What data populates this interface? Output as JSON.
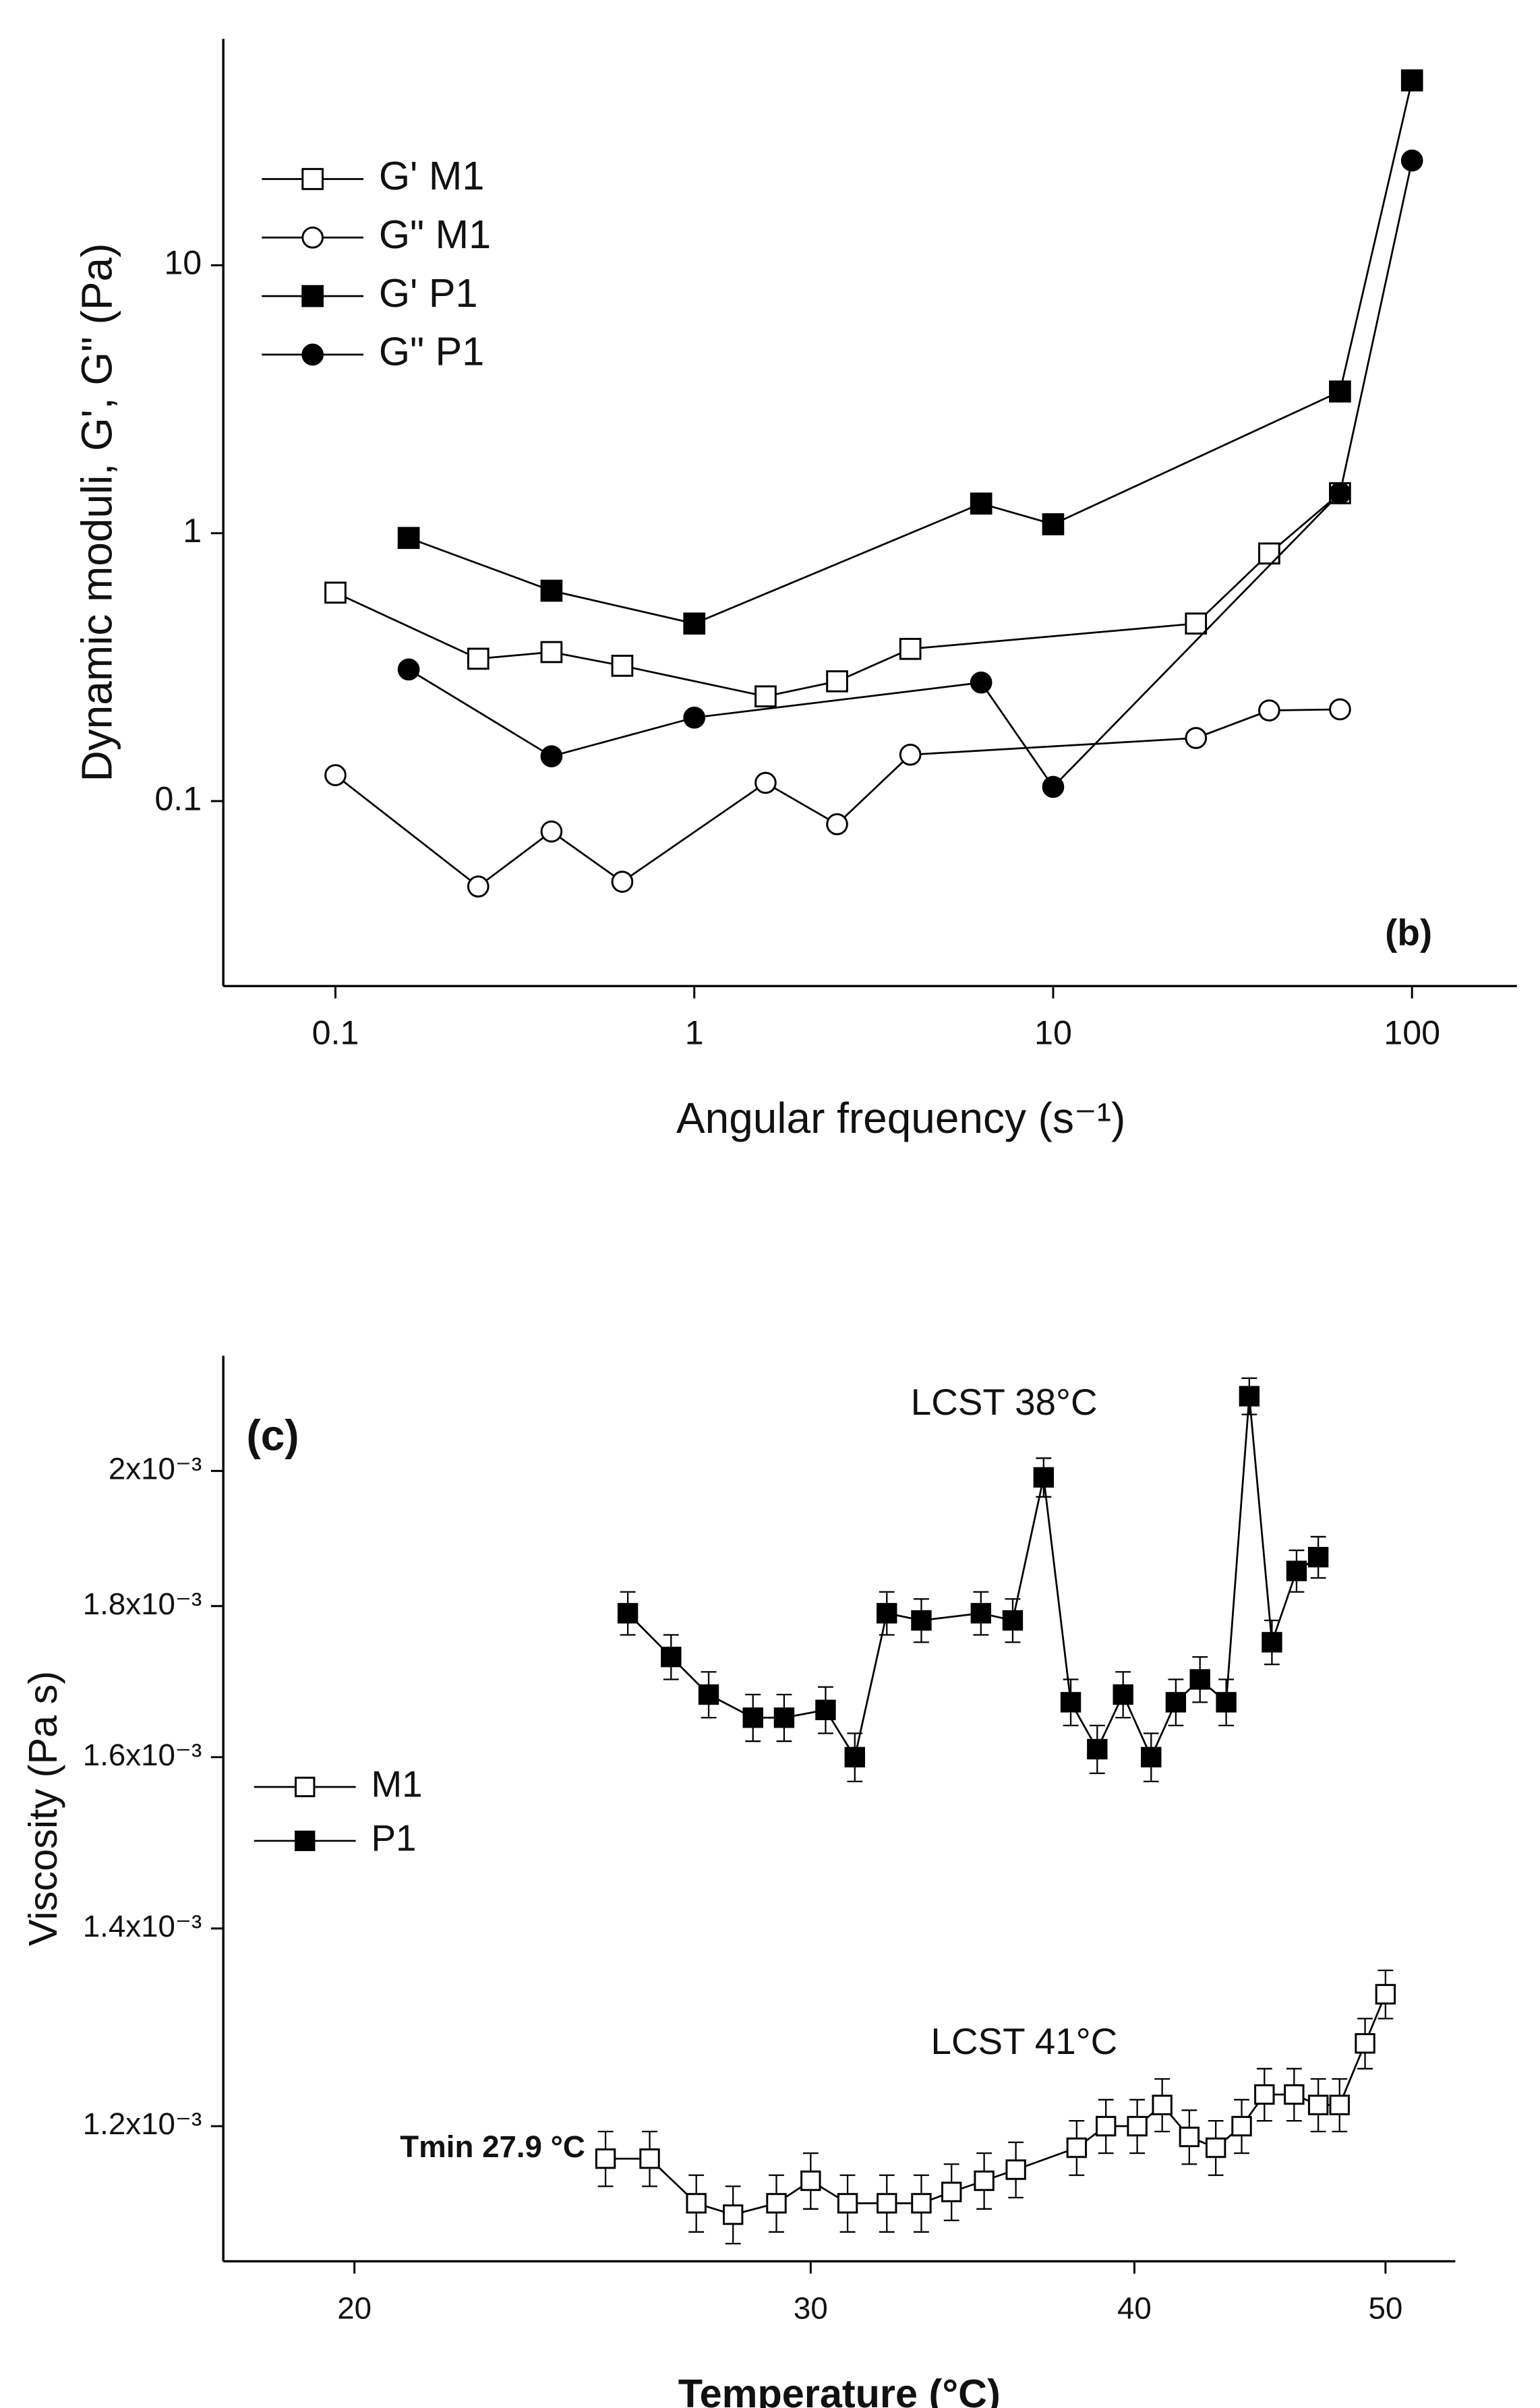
{
  "chart_data": [
    {
      "type": "line",
      "xscale": "log",
      "yscale": "log",
      "x_label": "Angular frequency (s⁻¹)",
      "y_label": "Dynamic moduli, G', G\" (Pa)",
      "xlim": [
        0.0487,
        196
      ],
      "ylim": [
        0.0204,
        70
      ],
      "xticks": [
        0.1,
        1,
        10,
        100
      ],
      "yticks": [
        0.1,
        1,
        10
      ],
      "legend": "upper left",
      "annotations": [
        "(b)"
      ],
      "series": [
        {
          "name": "G' M1",
          "marker": "square",
          "filled": false,
          "color": "#000000",
          "x": [
            0.1,
            0.25,
            0.4,
            0.63,
            1.58,
            2.5,
            4,
            25,
            40,
            63
          ],
          "values": [
            0.6,
            0.34,
            0.36,
            0.32,
            0.246,
            0.28,
            0.37,
            0.46,
            0.84,
            1.41
          ]
        },
        {
          "name": "G\" M1",
          "marker": "circle",
          "filled": false,
          "color": "#000000",
          "x": [
            0.1,
            0.25,
            0.4,
            0.63,
            1.58,
            2.5,
            4,
            25,
            40,
            63
          ],
          "values": [
            0.125,
            0.048,
            0.077,
            0.05,
            0.117,
            0.082,
            0.149,
            0.172,
            0.218,
            0.22
          ]
        },
        {
          "name": "G' P1",
          "marker": "square",
          "filled": true,
          "color": "#000000",
          "x": [
            0.16,
            0.4,
            1,
            6.3,
            10,
            63,
            100
          ],
          "values": [
            0.96,
            0.61,
            0.46,
            1.29,
            1.08,
            3.38,
            49
          ]
        },
        {
          "name": "G\" P1",
          "marker": "circle",
          "filled": true,
          "color": "#000000",
          "x": [
            0.16,
            0.4,
            1,
            6.3,
            10,
            63,
            100
          ],
          "values": [
            0.31,
            0.147,
            0.205,
            0.277,
            0.113,
            1.41,
            24.6
          ]
        }
      ]
    },
    {
      "type": "line",
      "xscale": "log",
      "yscale": "log",
      "x_label": "Temperature (°C)",
      "y_label": "Viscosity (Pa s)",
      "xlim": [
        17.8,
        53.2
      ],
      "ylim": [
        0.00108,
        0.002188
      ],
      "xticks": [
        20,
        30,
        40,
        50
      ],
      "yticks": [
        {
          "value": 0.0012,
          "label": "1.2x10⁻³"
        },
        {
          "value": 0.0014,
          "label": "1.4x10⁻³"
        },
        {
          "value": 0.0016,
          "label": "1.6x10⁻³"
        },
        {
          "value": 0.0018,
          "label": "1.8x10⁻³"
        },
        {
          "value": 0.002,
          "label": "2x10⁻³"
        }
      ],
      "legend": "center left",
      "annotations": [
        "LCST 38°C",
        "LCST 41°C",
        "(c)",
        "Tmin 27.9 °C"
      ],
      "series": [
        {
          "name": "M1",
          "marker": "square",
          "filled": false,
          "color": "#000000",
          "x": [
            25.0,
            26.0,
            27.1,
            28.0,
            29.1,
            30.0,
            31.0,
            32.1,
            33.1,
            34.0,
            35.0,
            36.0,
            38.0,
            39.0,
            40.1,
            41.0,
            42.0,
            43.0,
            44.0,
            44.9,
            46.1,
            47.1,
            48.0,
            49.1,
            50.0
          ],
          "values": [
            0.00117,
            0.00117,
            0.00113,
            0.00112,
            0.00113,
            0.00115,
            0.00113,
            0.00113,
            0.00113,
            0.00114,
            0.00115,
            0.00116,
            0.00118,
            0.0012,
            0.0012,
            0.00122,
            0.00119,
            0.00118,
            0.0012,
            0.00123,
            0.00123,
            0.00122,
            0.00122,
            0.00128,
            0.00133
          ],
          "errors": [
            2.5e-05,
            2.5e-05,
            2.5e-05,
            2.5e-05,
            2.5e-05,
            2.5e-05,
            2.5e-05,
            2.5e-05,
            2.5e-05,
            2.5e-05,
            2.5e-05,
            2.5e-05,
            2.5e-05,
            2.5e-05,
            2.5e-05,
            2.5e-05,
            2.5e-05,
            2.5e-05,
            2.5e-05,
            2.5e-05,
            2.5e-05,
            2.5e-05,
            2.5e-05,
            2.5e-05,
            2.5e-05
          ]
        },
        {
          "name": "P1",
          "marker": "square",
          "filled": true,
          "color": "#000000",
          "x": [
            25.5,
            26.5,
            27.4,
            28.5,
            29.3,
            30.4,
            31.2,
            32.1,
            33.1,
            34.9,
            35.9,
            36.9,
            37.8,
            38.7,
            39.6,
            40.6,
            41.5,
            42.4,
            43.4,
            44.3,
            45.2,
            46.2,
            47.1
          ],
          "values": [
            0.00179,
            0.00173,
            0.00168,
            0.00165,
            0.00165,
            0.00166,
            0.0016,
            0.00179,
            0.00178,
            0.00179,
            0.00178,
            0.00199,
            0.00167,
            0.00161,
            0.00168,
            0.0016,
            0.00167,
            0.0017,
            0.00167,
            0.00212,
            0.00175,
            0.00185,
            0.00187
          ],
          "errors": [
            3e-05,
            3e-05,
            3e-05,
            3e-05,
            3e-05,
            3e-05,
            3e-05,
            3e-05,
            3e-05,
            3e-05,
            3e-05,
            3e-05,
            3e-05,
            3e-05,
            3e-05,
            3e-05,
            3e-05,
            3e-05,
            3e-05,
            3e-05,
            3e-05,
            3e-05,
            3e-05
          ]
        }
      ]
    }
  ]
}
